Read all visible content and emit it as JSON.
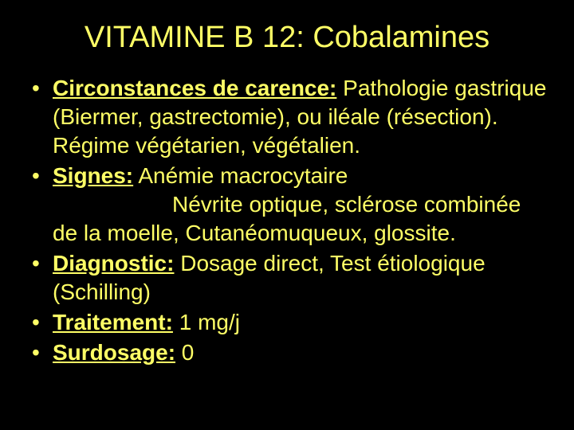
{
  "slide": {
    "title": "VITAMINE B 12: Cobalamines",
    "bullets": [
      {
        "label": "Circonstances de carence:",
        "text": " Pathologie gastrique (Biermer, gastrectomie), ou iléale (résection).   Régime végétarien, végétalien."
      },
      {
        "label": "Signes:",
        "text": " Anémie macrocytaire",
        "cont1_prefix": "Névrite optique, sclérose combinée de la moelle, Cutanéomuqueux, glossite.",
        "cont1_indent": true
      },
      {
        "label": "Diagnostic:",
        "text": " Dosage direct, Test étiologique (Schilling)"
      },
      {
        "label": "Traitement:",
        "text": " 1 mg/j"
      },
      {
        "label": "Surdosage:",
        "text": " 0"
      }
    ],
    "colors": {
      "background": "#000000",
      "text": "#ffff66"
    },
    "typography": {
      "title_fontsize": 38,
      "body_fontsize": 28,
      "line_height": 36,
      "font_family": "Arial"
    }
  }
}
